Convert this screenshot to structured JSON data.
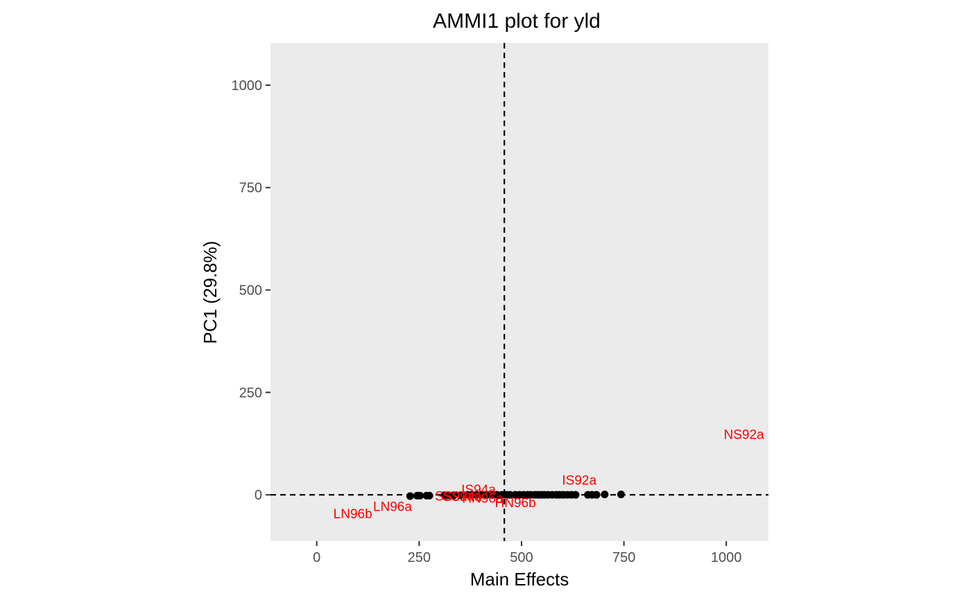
{
  "chart_data": {
    "type": "scatter",
    "title": "AMMI1 plot for yld",
    "xlabel": "Main Effects",
    "ylabel": "PC1 (29.8%)",
    "xlim": [
      -113,
      1103
    ],
    "ylim": [
      -113,
      1103
    ],
    "xticks": [
      0,
      250,
      500,
      750,
      1000
    ],
    "yticks": [
      0,
      250,
      500,
      750,
      1000
    ],
    "grid": false,
    "background": "#ebebeb",
    "point_color": "#000000",
    "label_color": "#ff0000",
    "reference_lines": {
      "vline_x": 458,
      "hline_y": 0,
      "style": "dashed"
    },
    "genotypes": {
      "x": [
        228,
        245,
        252,
        268,
        275,
        312,
        320,
        335,
        352,
        368,
        378,
        390,
        402,
        415,
        428,
        440,
        452,
        463,
        472,
        485,
        495,
        505,
        515,
        522,
        532,
        540,
        548,
        556,
        565,
        575,
        585,
        593,
        602,
        612,
        622,
        632,
        662,
        672,
        683,
        703,
        743
      ],
      "y": [
        -3,
        -2,
        -2,
        -2,
        -2,
        -1,
        -1,
        -1,
        -1,
        0,
        0,
        0,
        0,
        0,
        0,
        0,
        0,
        0,
        0,
        0,
        0,
        0,
        0,
        0,
        0,
        0,
        0,
        0,
        0,
        0,
        0,
        0,
        0,
        0,
        0,
        0,
        0,
        0,
        0,
        1,
        1
      ]
    },
    "environments": [
      {
        "name": "NS92a",
        "x": 1043,
        "y": 148
      },
      {
        "name": "IS92a",
        "x": 641,
        "y": 37
      },
      {
        "name": "IS94a",
        "x": 395,
        "y": 14
      },
      {
        "name": "SS92a",
        "x": 337,
        "y": -2
      },
      {
        "name": "SS94a",
        "x": 355,
        "y": -3
      },
      {
        "name": "HN96a",
        "x": 405,
        "y": -7
      },
      {
        "name": "HN96b",
        "x": 485,
        "y": -18
      },
      {
        "name": "LN96a",
        "x": 185,
        "y": -28
      },
      {
        "name": "LN96b",
        "x": 88,
        "y": -45
      }
    ]
  }
}
